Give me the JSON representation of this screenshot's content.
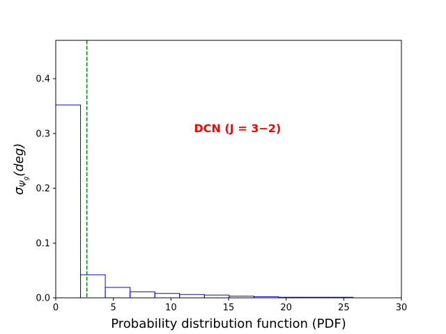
{
  "chart_data": {
    "type": "bar",
    "histtype": "step",
    "xlabel": "Probability distribution function (PDF)",
    "ylabel": {
      "base": "σ",
      "sub": "Ψ",
      "subsub": "g",
      "unit": "(deg)"
    },
    "xlim": [
      0,
      30
    ],
    "ylim": [
      0,
      0.47
    ],
    "xticks": [
      0,
      5,
      10,
      15,
      20,
      25,
      30
    ],
    "yticks": [
      0.0,
      0.1,
      0.2,
      0.3,
      0.4
    ],
    "xtick_labels": [
      "0",
      "5",
      "10",
      "15",
      "20",
      "25",
      "30"
    ],
    "ytick_labels": [
      "0.0",
      "0.1",
      "0.2",
      "0.3",
      "0.4"
    ],
    "grid": false,
    "bins": [
      {
        "x0": 0.0,
        "x1": 2.15,
        "value": 0.352
      },
      {
        "x0": 2.15,
        "x1": 4.3,
        "value": 0.042
      },
      {
        "x0": 4.3,
        "x1": 6.45,
        "value": 0.019
      },
      {
        "x0": 6.45,
        "x1": 8.6,
        "value": 0.011
      },
      {
        "x0": 8.6,
        "x1": 10.75,
        "value": 0.008
      },
      {
        "x0": 10.75,
        "x1": 12.9,
        "value": 0.006
      },
      {
        "x0": 12.9,
        "x1": 15.05,
        "value": 0.005
      },
      {
        "x0": 15.05,
        "x1": 17.2,
        "value": 0.003
      },
      {
        "x0": 17.2,
        "x1": 19.35,
        "value": 0.002
      },
      {
        "x0": 19.35,
        "x1": 21.5,
        "value": 0.001
      },
      {
        "x0": 21.5,
        "x1": 23.65,
        "value": 0.001
      },
      {
        "x0": 23.65,
        "x1": 25.8,
        "value": 0.001
      }
    ],
    "bar_color": "#0000ff",
    "vline": {
      "x": 2.7,
      "color": "#008000",
      "style": "dashed"
    },
    "annotation": {
      "text": "DCN (J = 3−2)",
      "color": "#ff0000",
      "x": 12.0,
      "y": 0.31
    }
  }
}
